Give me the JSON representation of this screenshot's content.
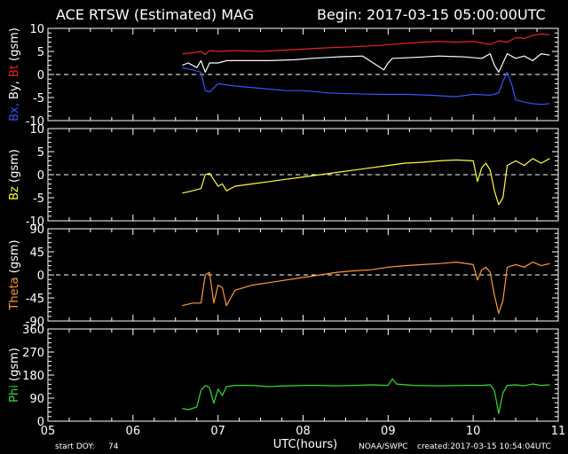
{
  "header": {
    "title": "ACE RTSW (Estimated) MAG",
    "begin": "Begin: 2017-03-15 05:00:00UTC"
  },
  "footer": {
    "start_doy_label": "start DOY:",
    "start_doy_value": "74",
    "xlabel": "UTC(hours)",
    "source": "NOAA/SWPC",
    "created": "created:2017-03-15 10:54:04UTC"
  },
  "colors": {
    "bx": "#3355ff",
    "by": "#ffffff",
    "bt": "#ee2222",
    "bz": "#ffff33",
    "theta": "#ff9933",
    "phi": "#33dd33",
    "axes": "#ffffff"
  },
  "chart_data": [
    {
      "type": "line",
      "ylabel_parts": [
        {
          "text": "Bx,",
          "color": "#3355ff"
        },
        {
          "text": " By,",
          "color": "#ffffff"
        },
        {
          "text": " Bt",
          "color": "#ee2222"
        },
        {
          "text": " (gsm)",
          "color": "#ffffff"
        }
      ],
      "ylim": [
        -10,
        10
      ],
      "yticks": [
        10,
        5,
        0,
        -5,
        -10
      ],
      "xlim": [
        5,
        11
      ],
      "xticks": [
        "05",
        "06",
        "07",
        "08",
        "09",
        "10",
        "11"
      ],
      "zero_line": true,
      "series": [
        {
          "key": "bt",
          "x": [
            6.58,
            6.7,
            6.8,
            6.85,
            6.9,
            7.0,
            7.2,
            7.5,
            7.8,
            8.0,
            8.3,
            8.6,
            8.9,
            9.1,
            9.4,
            9.6,
            9.8,
            10.0,
            10.2,
            10.3,
            10.4,
            10.5,
            10.6,
            10.7,
            10.8,
            10.9
          ],
          "y": [
            4.5,
            4.7,
            5.0,
            4.3,
            5.2,
            5.0,
            5.2,
            5.0,
            5.3,
            5.5,
            5.8,
            6.0,
            6.3,
            6.6,
            7.0,
            7.2,
            7.0,
            7.2,
            6.5,
            7.3,
            7.0,
            8.0,
            7.8,
            8.5,
            8.8,
            8.6
          ]
        },
        {
          "key": "by",
          "x": [
            6.58,
            6.65,
            6.75,
            6.8,
            6.85,
            6.9,
            7.0,
            7.1,
            7.3,
            7.6,
            7.9,
            8.1,
            8.4,
            8.7,
            8.95,
            9.0,
            9.05,
            9.3,
            9.6,
            9.9,
            10.1,
            10.2,
            10.25,
            10.3,
            10.35,
            10.4,
            10.5,
            10.6,
            10.7,
            10.8,
            10.9
          ],
          "y": [
            2.0,
            2.5,
            1.5,
            3.0,
            0.5,
            2.5,
            2.5,
            3.0,
            3.0,
            3.0,
            3.2,
            3.5,
            3.8,
            4.0,
            1.0,
            2.5,
            3.5,
            3.7,
            4.0,
            3.8,
            3.5,
            4.5,
            2.0,
            0.5,
            2.5,
            4.5,
            3.5,
            4.0,
            3.0,
            4.5,
            4.2
          ]
        },
        {
          "key": "bx",
          "x": [
            6.58,
            6.7,
            6.8,
            6.85,
            6.9,
            7.0,
            7.2,
            7.5,
            7.8,
            8.0,
            8.3,
            8.6,
            8.9,
            9.2,
            9.5,
            9.8,
            10.0,
            10.2,
            10.3,
            10.35,
            10.4,
            10.45,
            10.5,
            10.6,
            10.7,
            10.8,
            10.9
          ],
          "y": [
            1.5,
            1.0,
            0.5,
            -3.5,
            -3.8,
            -2.0,
            -2.5,
            -3.0,
            -3.5,
            -3.5,
            -4.0,
            -4.2,
            -4.3,
            -4.3,
            -4.5,
            -4.8,
            -4.3,
            -4.5,
            -4.0,
            -1.5,
            0.5,
            -2.0,
            -5.5,
            -6.0,
            -6.3,
            -6.5,
            -6.3
          ]
        }
      ]
    },
    {
      "type": "line",
      "ylabel_parts": [
        {
          "text": "Bz",
          "color": "#ffff33"
        },
        {
          "text": " (gsm)",
          "color": "#ffffff"
        }
      ],
      "ylim": [
        -10,
        10
      ],
      "yticks": [
        10,
        5,
        0,
        -5,
        -10
      ],
      "xlim": [
        5,
        11
      ],
      "xticks": [
        "05",
        "06",
        "07",
        "08",
        "09",
        "10",
        "11"
      ],
      "zero_line": true,
      "series": [
        {
          "key": "bz",
          "x": [
            6.58,
            6.7,
            6.8,
            6.85,
            6.9,
            7.0,
            7.05,
            7.1,
            7.2,
            7.4,
            7.6,
            7.8,
            8.0,
            8.2,
            8.4,
            8.6,
            8.8,
            9.0,
            9.2,
            9.4,
            9.6,
            9.8,
            10.0,
            10.05,
            10.1,
            10.15,
            10.2,
            10.25,
            10.3,
            10.35,
            10.4,
            10.5,
            10.6,
            10.7,
            10.8,
            10.9
          ],
          "y": [
            -4.0,
            -3.5,
            -3.0,
            0.0,
            0.3,
            -2.5,
            -2.0,
            -3.5,
            -2.5,
            -2.0,
            -1.5,
            -1.0,
            -0.5,
            0.0,
            0.5,
            1.0,
            1.5,
            2.0,
            2.5,
            2.7,
            3.0,
            3.2,
            3.0,
            -1.5,
            1.5,
            2.5,
            1.0,
            -3.5,
            -6.5,
            -5.0,
            2.0,
            3.0,
            2.0,
            3.5,
            2.5,
            3.5
          ]
        }
      ]
    },
    {
      "type": "line",
      "ylabel_parts": [
        {
          "text": "Theta",
          "color": "#ff9933"
        },
        {
          "text": " (gsm)",
          "color": "#ffffff"
        }
      ],
      "ylim": [
        -90,
        90
      ],
      "yticks": [
        90,
        45,
        0,
        -45,
        -90
      ],
      "xlim": [
        5,
        11
      ],
      "xticks": [
        "05",
        "06",
        "07",
        "08",
        "09",
        "10",
        "11"
      ],
      "zero_line": true,
      "series": [
        {
          "key": "theta",
          "x": [
            6.58,
            6.7,
            6.8,
            6.85,
            6.9,
            6.95,
            7.0,
            7.05,
            7.1,
            7.2,
            7.4,
            7.6,
            7.8,
            8.0,
            8.2,
            8.4,
            8.6,
            8.8,
            9.0,
            9.2,
            9.4,
            9.6,
            9.8,
            10.0,
            10.05,
            10.1,
            10.15,
            10.2,
            10.25,
            10.3,
            10.35,
            10.4,
            10.5,
            10.6,
            10.7,
            10.8,
            10.9
          ],
          "y": [
            -60,
            -55,
            -55,
            0,
            5,
            -55,
            -20,
            -25,
            -60,
            -30,
            -20,
            -15,
            -10,
            -5,
            0,
            5,
            8,
            10,
            15,
            18,
            20,
            22,
            25,
            20,
            -10,
            10,
            15,
            5,
            -40,
            -75,
            -50,
            15,
            20,
            15,
            25,
            18,
            22
          ]
        }
      ]
    },
    {
      "type": "line",
      "ylabel_parts": [
        {
          "text": "Phi",
          "color": "#33dd33"
        },
        {
          "text": " (gsm)",
          "color": "#ffffff"
        }
      ],
      "ylim": [
        0,
        360
      ],
      "yticks": [
        360,
        270,
        180,
        90,
        0
      ],
      "xlim": [
        5,
        11
      ],
      "xticks": [
        "05",
        "06",
        "07",
        "08",
        "09",
        "10",
        "11"
      ],
      "zero_line": false,
      "series": [
        {
          "key": "phi",
          "x": [
            6.58,
            6.65,
            6.75,
            6.8,
            6.85,
            6.9,
            6.95,
            7.0,
            7.05,
            7.1,
            7.2,
            7.4,
            7.6,
            7.8,
            8.0,
            8.2,
            8.4,
            8.6,
            8.8,
            9.0,
            9.05,
            9.1,
            9.3,
            9.6,
            9.9,
            10.1,
            10.2,
            10.25,
            10.3,
            10.35,
            10.4,
            10.5,
            10.6,
            10.7,
            10.8,
            10.9
          ],
          "y": [
            50,
            45,
            55,
            120,
            140,
            130,
            70,
            125,
            100,
            135,
            140,
            140,
            135,
            138,
            140,
            140,
            138,
            140,
            142,
            140,
            165,
            145,
            140,
            138,
            140,
            140,
            142,
            120,
            30,
            110,
            140,
            142,
            138,
            145,
            140,
            142
          ]
        }
      ]
    }
  ]
}
